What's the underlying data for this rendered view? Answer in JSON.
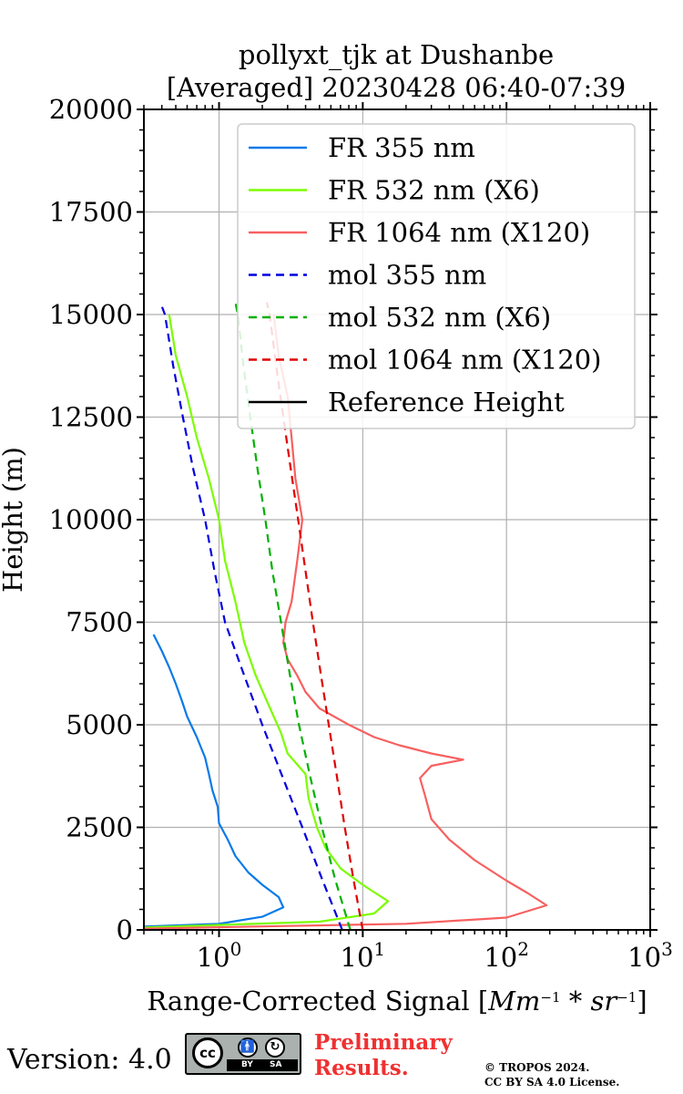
{
  "chart_data": {
    "type": "line",
    "title": "pollyxt_tjk at Dushanbe",
    "subtitle": "[Averaged] 20230428 06:40-07:39",
    "xlabel": "Range-Corrected Signal",
    "xlabel_unit_html": "[<tspan font-style='italic'>Mm</tspan><tspan dy='-9' font-size='15'>−1</tspan><tspan dy='9'> * </tspan><tspan font-style='italic'>sr</tspan><tspan dy='-9' font-size='15'>−1</tspan><tspan dy='9'>]</tspan>",
    "ylabel": "Height (m)",
    "xscale": "log",
    "xlim": [
      0.3,
      1000
    ],
    "ylim": [
      0,
      20000
    ],
    "grid": true,
    "legend_position": "top-right",
    "x_ticks": [
      {
        "v": 1,
        "base": "10",
        "exp": "0"
      },
      {
        "v": 10,
        "base": "10",
        "exp": "1"
      },
      {
        "v": 100,
        "base": "10",
        "exp": "2"
      },
      {
        "v": 1000,
        "base": "10",
        "exp": "3"
      }
    ],
    "y_ticks": [
      0,
      2500,
      5000,
      7500,
      10000,
      12500,
      15000,
      17500,
      20000
    ],
    "series": [
      {
        "name": "FR 355 nm",
        "color": "#0a7ae8",
        "dash": "none",
        "width": 2.2,
        "points": [
          [
            0.3,
            80
          ],
          [
            1.0,
            150
          ],
          [
            2.0,
            320
          ],
          [
            2.8,
            550
          ],
          [
            2.6,
            800
          ],
          [
            2.0,
            1100
          ],
          [
            1.6,
            1400
          ],
          [
            1.3,
            1800
          ],
          [
            1.15,
            2200
          ],
          [
            1.0,
            2600
          ],
          [
            0.98,
            3000
          ],
          [
            0.9,
            3400
          ],
          [
            0.85,
            3800
          ],
          [
            0.8,
            4200
          ],
          [
            0.7,
            4700
          ],
          [
            0.6,
            5200
          ],
          [
            0.55,
            5600
          ],
          [
            0.5,
            6000
          ],
          [
            0.45,
            6400
          ],
          [
            0.4,
            6800
          ],
          [
            0.35,
            7200
          ]
        ]
      },
      {
        "name": "FR 532 nm (X6)",
        "color": "#7cfc00",
        "dash": "none",
        "width": 2.2,
        "points": [
          [
            0.3,
            60
          ],
          [
            5.0,
            200
          ],
          [
            12.0,
            400
          ],
          [
            15.0,
            700
          ],
          [
            10.0,
            1100
          ],
          [
            7.0,
            1500
          ],
          [
            5.5,
            2000
          ],
          [
            4.8,
            2500
          ],
          [
            4.2,
            3200
          ],
          [
            4.0,
            3800
          ],
          [
            3.0,
            4300
          ],
          [
            2.7,
            4800
          ],
          [
            2.2,
            5500
          ],
          [
            1.8,
            6200
          ],
          [
            1.5,
            7000
          ],
          [
            1.3,
            8000
          ],
          [
            1.1,
            9000
          ],
          [
            1.0,
            10000
          ],
          [
            0.85,
            11000
          ],
          [
            0.7,
            12000
          ],
          [
            0.6,
            13000
          ],
          [
            0.5,
            14000
          ],
          [
            0.45,
            15000
          ]
        ]
      },
      {
        "name": "FR 1064 nm (X120)",
        "color": "#f76060",
        "dash": "none",
        "width": 2.2,
        "points": [
          [
            0.3,
            30
          ],
          [
            20,
            150
          ],
          [
            100,
            300
          ],
          [
            190,
            600
          ],
          [
            140,
            900
          ],
          [
            100,
            1200
          ],
          [
            60,
            1700
          ],
          [
            40,
            2200
          ],
          [
            30,
            2700
          ],
          [
            27,
            3300
          ],
          [
            25,
            3700
          ],
          [
            30,
            4000
          ],
          [
            50,
            4150
          ],
          [
            30,
            4300
          ],
          [
            18,
            4500
          ],
          [
            12,
            4700
          ],
          [
            8,
            5000
          ],
          [
            5,
            5400
          ],
          [
            4,
            5800
          ],
          [
            3.5,
            6200
          ],
          [
            3,
            6600
          ],
          [
            2.8,
            7000
          ],
          [
            2.9,
            7500
          ],
          [
            3.2,
            8000
          ],
          [
            3.5,
            9000
          ],
          [
            3.8,
            10000
          ],
          [
            3.4,
            11000
          ],
          [
            3.2,
            12000
          ],
          [
            3.0,
            13000
          ],
          [
            2.6,
            14000
          ],
          [
            2.4,
            15000
          ]
        ]
      },
      {
        "name": "mol 355 nm",
        "color": "#0000e0",
        "dash": "9,6",
        "width": 2.2,
        "points": [
          [
            7.2,
            0
          ],
          [
            5.2,
            1250
          ],
          [
            3.8,
            2500
          ],
          [
            2.75,
            3750
          ],
          [
            2.0,
            5000
          ],
          [
            1.48,
            6250
          ],
          [
            1.1,
            7500
          ],
          [
            0.93,
            8750
          ],
          [
            0.8,
            10000
          ],
          [
            0.66,
            11250
          ],
          [
            0.56,
            12500
          ],
          [
            0.48,
            13750
          ],
          [
            0.42,
            15000
          ],
          [
            0.39,
            15300
          ]
        ]
      },
      {
        "name": "mol 532 nm (X6)",
        "color": "#00b000",
        "dash": "9,6",
        "width": 2.2,
        "points": [
          [
            8.2,
            0
          ],
          [
            6.4,
            1250
          ],
          [
            5.2,
            2500
          ],
          [
            4.3,
            3750
          ],
          [
            3.6,
            5000
          ],
          [
            3.1,
            6250
          ],
          [
            2.7,
            7500
          ],
          [
            2.35,
            8750
          ],
          [
            2.1,
            10000
          ],
          [
            1.85,
            11250
          ],
          [
            1.65,
            12500
          ],
          [
            1.48,
            13750
          ],
          [
            1.35,
            15000
          ],
          [
            1.3,
            15300
          ]
        ]
      },
      {
        "name": "mol 1064 nm (X120)",
        "color": "#e00000",
        "dash": "9,6",
        "width": 2.2,
        "points": [
          [
            10.0,
            0
          ],
          [
            8.6,
            1250
          ],
          [
            7.5,
            2500
          ],
          [
            6.6,
            3750
          ],
          [
            5.8,
            5000
          ],
          [
            5.1,
            6250
          ],
          [
            4.5,
            7500
          ],
          [
            4.0,
            8750
          ],
          [
            3.55,
            10000
          ],
          [
            3.15,
            11250
          ],
          [
            2.8,
            12500
          ],
          [
            2.5,
            13750
          ],
          [
            2.25,
            15000
          ],
          [
            2.15,
            15300
          ]
        ]
      },
      {
        "name": "Reference Height",
        "color": "#000000",
        "dash": "none",
        "width": 2.2,
        "points": []
      }
    ]
  },
  "footer": {
    "version_label": "Version: 4.0",
    "license_badge": {
      "cc": "cc",
      "by": "BY",
      "sa": "SA"
    },
    "preliminary_line1": "Preliminary",
    "preliminary_line2": "Results.",
    "copyright_line1": "© TROPOS 2024.",
    "copyright_line2": "CC BY SA 4.0 License."
  }
}
